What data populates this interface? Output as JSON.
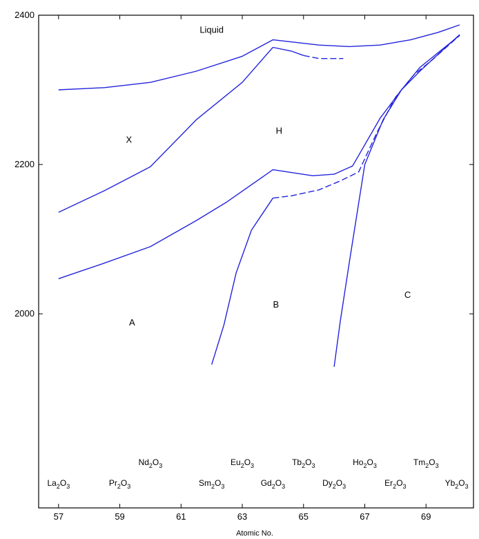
{
  "chart_data": {
    "type": "line",
    "title": "",
    "xlabel": "Atomic No.",
    "ylabel": "",
    "xlim": [
      56.35,
      70.55
    ],
    "ylim": [
      1740,
      2400
    ],
    "x_ticks": [
      57,
      59,
      61,
      63,
      65,
      67,
      69
    ],
    "y_ticks": [
      2000,
      2200,
      2400
    ],
    "x_tick_labels": [
      "57",
      "59",
      "61",
      "63",
      "65",
      "67",
      "69"
    ],
    "y_tick_labels": [
      "2000",
      "2200",
      "2400"
    ],
    "grid": false,
    "line_color": "#2323dd",
    "series": [
      {
        "style": "solid",
        "points": [
          [
            57,
            2300
          ],
          [
            58.5,
            2303
          ],
          [
            60,
            2310
          ],
          [
            61.5,
            2325
          ],
          [
            63,
            2345
          ],
          [
            64,
            2367
          ],
          [
            65.5,
            2360
          ],
          [
            66.5,
            2358
          ],
          [
            67.5,
            2360
          ],
          [
            68.5,
            2367
          ],
          [
            69.4,
            2377
          ],
          [
            70.1,
            2387
          ]
        ]
      },
      {
        "style": "solid",
        "points": [
          [
            64,
            2357
          ],
          [
            64.6,
            2352
          ],
          [
            65,
            2346
          ]
        ]
      },
      {
        "style": "dashed",
        "points": [
          [
            65,
            2346
          ],
          [
            65.5,
            2342
          ],
          [
            66.3,
            2342
          ]
        ]
      },
      {
        "style": "solid",
        "points": [
          [
            57,
            2136
          ],
          [
            58.5,
            2165
          ],
          [
            60,
            2197
          ],
          [
            61.5,
            2260
          ],
          [
            63,
            2310
          ],
          [
            64,
            2357
          ]
        ]
      },
      {
        "style": "solid",
        "points": [
          [
            57,
            2047
          ],
          [
            58.5,
            2068
          ],
          [
            60,
            2090
          ],
          [
            61.5,
            2125
          ],
          [
            62.5,
            2150
          ],
          [
            64,
            2193
          ],
          [
            64.5,
            2190
          ],
          [
            65.3,
            2185
          ],
          [
            66,
            2187
          ],
          [
            66.6,
            2198
          ],
          [
            67.5,
            2262
          ],
          [
            68.2,
            2300
          ],
          [
            68.8,
            2325
          ],
          [
            69.4,
            2348
          ],
          [
            70.1,
            2374
          ]
        ]
      },
      {
        "style": "solid",
        "points": [
          [
            62,
            1932
          ],
          [
            62.4,
            1985
          ],
          [
            62.8,
            2055
          ],
          [
            63.3,
            2112
          ],
          [
            64,
            2155
          ]
        ]
      },
      {
        "style": "dashed",
        "points": [
          [
            64,
            2155
          ],
          [
            64.6,
            2158
          ],
          [
            65.5,
            2166
          ],
          [
            66.2,
            2178
          ],
          [
            66.8,
            2190
          ],
          [
            67.4,
            2243
          ],
          [
            68,
            2290
          ],
          [
            68.6,
            2320
          ],
          [
            69.2,
            2340
          ],
          [
            70.1,
            2373
          ]
        ]
      },
      {
        "style": "solid",
        "points": [
          [
            66,
            1929
          ],
          [
            66.2,
            1990
          ],
          [
            66.5,
            2070
          ],
          [
            67,
            2200
          ],
          [
            67.6,
            2260
          ],
          [
            68.2,
            2300
          ],
          [
            68.8,
            2330
          ],
          [
            69.4,
            2350
          ],
          [
            70.1,
            2373
          ]
        ]
      }
    ],
    "regions": [
      {
        "label": "Liquid",
        "x": 62,
        "y": 2380
      },
      {
        "label": "X",
        "x": 59.3,
        "y": 2233
      },
      {
        "label": "H",
        "x": 64.2,
        "y": 2245
      },
      {
        "label": "B",
        "x": 64.1,
        "y": 2012
      },
      {
        "label": "C",
        "x": 68.4,
        "y": 2025
      },
      {
        "label": "A",
        "x": 59.4,
        "y": 1988
      }
    ],
    "oxides": [
      {
        "base": "La",
        "o": "O",
        "n2": "2",
        "n3": "3",
        "x": 57,
        "row": "low"
      },
      {
        "base": "Pr",
        "o": "O",
        "n2": "2",
        "n3": "3",
        "x": 59,
        "row": "low"
      },
      {
        "base": "Nd",
        "o": "O",
        "n2": "2",
        "n3": "3",
        "x": 60,
        "row": "high"
      },
      {
        "base": "Sm",
        "o": "O",
        "n2": "2",
        "n3": "3",
        "x": 62,
        "row": "low"
      },
      {
        "base": "Eu",
        "o": "O",
        "n2": "2",
        "n3": "3",
        "x": 63,
        "row": "high"
      },
      {
        "base": "Gd",
        "o": "O",
        "n2": "2",
        "n3": "3",
        "x": 64,
        "row": "low"
      },
      {
        "base": "Tb",
        "o": "O",
        "n2": "2",
        "n3": "3",
        "x": 65,
        "row": "high"
      },
      {
        "base": "Dy",
        "o": "O",
        "n2": "2",
        "n3": "3",
        "x": 66,
        "row": "low"
      },
      {
        "base": "Ho",
        "o": "O",
        "n2": "2",
        "n3": "3",
        "x": 67,
        "row": "high"
      },
      {
        "base": "Er",
        "o": "O",
        "n2": "2",
        "n3": "3",
        "x": 68,
        "row": "low"
      },
      {
        "base": "Tm",
        "o": "O",
        "n2": "2",
        "n3": "3",
        "x": 69,
        "row": "high"
      },
      {
        "base": "Yb",
        "o": "O",
        "n2": "2",
        "n3": "3",
        "x": 70,
        "row": "low"
      }
    ]
  }
}
